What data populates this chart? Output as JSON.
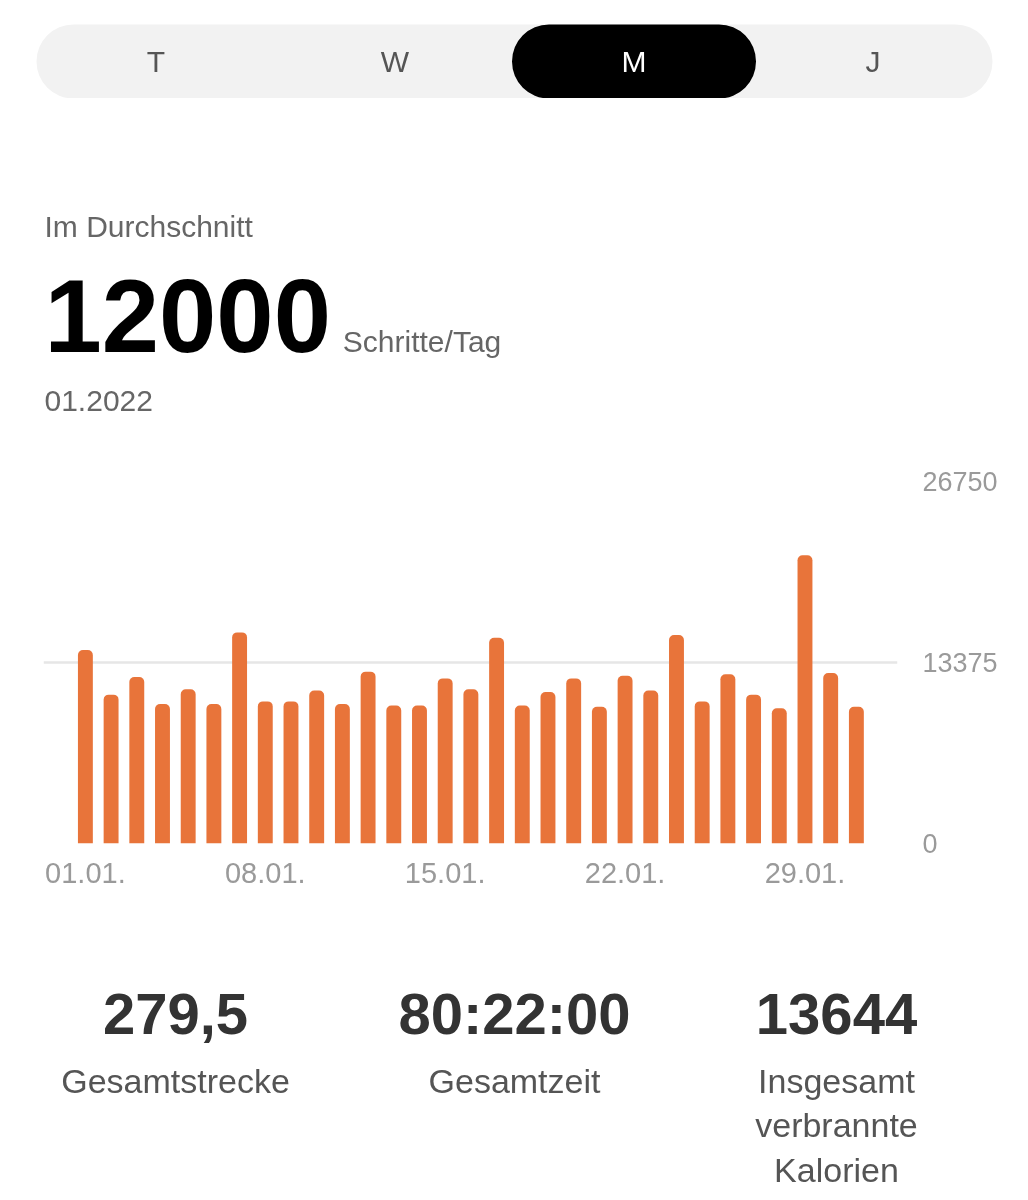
{
  "chart_data": {
    "type": "bar",
    "title": "Im Durchschnitt",
    "subtitle": "01.2022",
    "annotations": [
      "T",
      "W",
      "M",
      "J",
      "12000",
      "Schritte/Tag",
      "279,5",
      "Gesamtstrecke",
      "80:22:00",
      "Gesamtzeit",
      "13644",
      "Insgesamt verbrannte Kalorien"
    ],
    "categories": [
      "01.01.",
      null,
      null,
      null,
      null,
      null,
      null,
      "08.01.",
      null,
      null,
      null,
      null,
      null,
      null,
      "15.01.",
      null,
      null,
      null,
      null,
      null,
      null,
      "22.01.",
      null,
      null,
      null,
      null,
      null,
      null,
      "29.01.",
      null,
      null
    ],
    "values": [
      14300,
      11000,
      12300,
      10300,
      11400,
      10300,
      15600,
      10500,
      10500,
      11300,
      10300,
      12700,
      10200,
      10200,
      12200,
      11400,
      15200,
      10200,
      11200,
      12200,
      10100,
      12400,
      11300,
      15400,
      10500,
      12500,
      11000,
      10000,
      21300,
      12600,
      10100
    ],
    "color": "#e8743a",
    "ylim": [
      0,
      26750
    ],
    "yticks": [
      0,
      13375,
      26750
    ],
    "grid": "y"
  }
}
